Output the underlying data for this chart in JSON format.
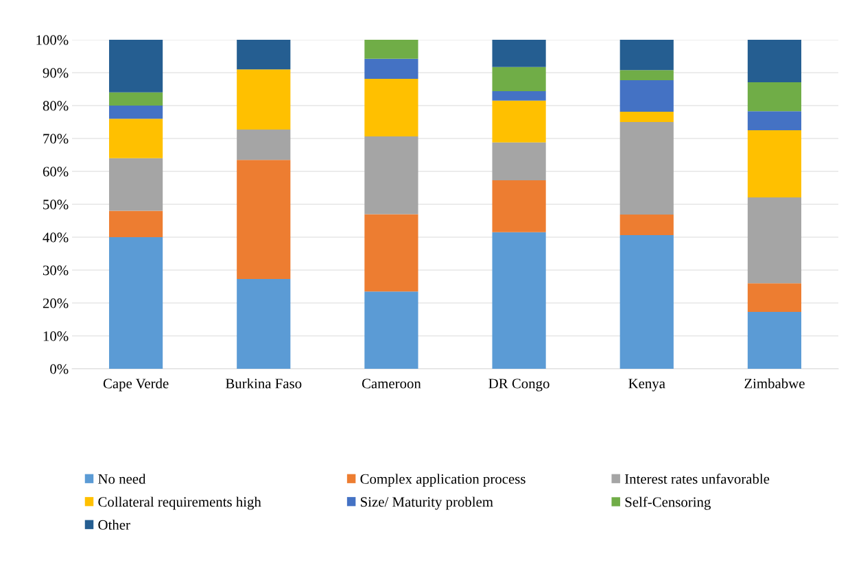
{
  "chart_data": {
    "type": "bar",
    "stacked": true,
    "categories": [
      "Cape Verde",
      "Burkina Faso",
      "Cameroon",
      "DR Congo",
      "Kenya",
      "Zimbabwe"
    ],
    "series": [
      {
        "name": "No need",
        "color": "#5b9bd5",
        "values": [
          40,
          27.3,
          23.5,
          41.5,
          40.6,
          17.3
        ]
      },
      {
        "name": "Complex application process",
        "color": "#ed7d31",
        "values": [
          8,
          36.2,
          23.5,
          15.8,
          6.3,
          8.7
        ]
      },
      {
        "name": "Interest rates unfavorable",
        "color": "#a5a5a5",
        "values": [
          16,
          9.2,
          23.6,
          11.5,
          28.1,
          26.1
        ]
      },
      {
        "name": "Collateral requirements high",
        "color": "#ffc000",
        "values": [
          12,
          18.3,
          17.5,
          12.7,
          3.1,
          20.4
        ]
      },
      {
        "name": "Size/ Maturity problem",
        "color": "#4472c4",
        "values": [
          4,
          0,
          6.1,
          2.9,
          9.6,
          5.8
        ]
      },
      {
        "name": "Self-Censoring",
        "color": "#70ad47",
        "values": [
          4,
          0,
          5.8,
          7.3,
          3.1,
          8.8
        ]
      },
      {
        "name": "Other",
        "color": "#255e91",
        "values": [
          16,
          9,
          0,
          8.3,
          9.2,
          12.9
        ]
      }
    ],
    "ylim": [
      0,
      100
    ],
    "yticks": [
      {
        "value": 0,
        "label": "0%"
      },
      {
        "value": 10,
        "label": "10%"
      },
      {
        "value": 20,
        "label": "20%"
      },
      {
        "value": 30,
        "label": "30%"
      },
      {
        "value": 40,
        "label": "40%"
      },
      {
        "value": 50,
        "label": "50%"
      },
      {
        "value": 60,
        "label": "60%"
      },
      {
        "value": 70,
        "label": "70%"
      },
      {
        "value": 80,
        "label": "80%"
      },
      {
        "value": 90,
        "label": "90%"
      },
      {
        "value": 100,
        "label": "100%"
      }
    ],
    "grid": "y",
    "legend": "bottom"
  }
}
